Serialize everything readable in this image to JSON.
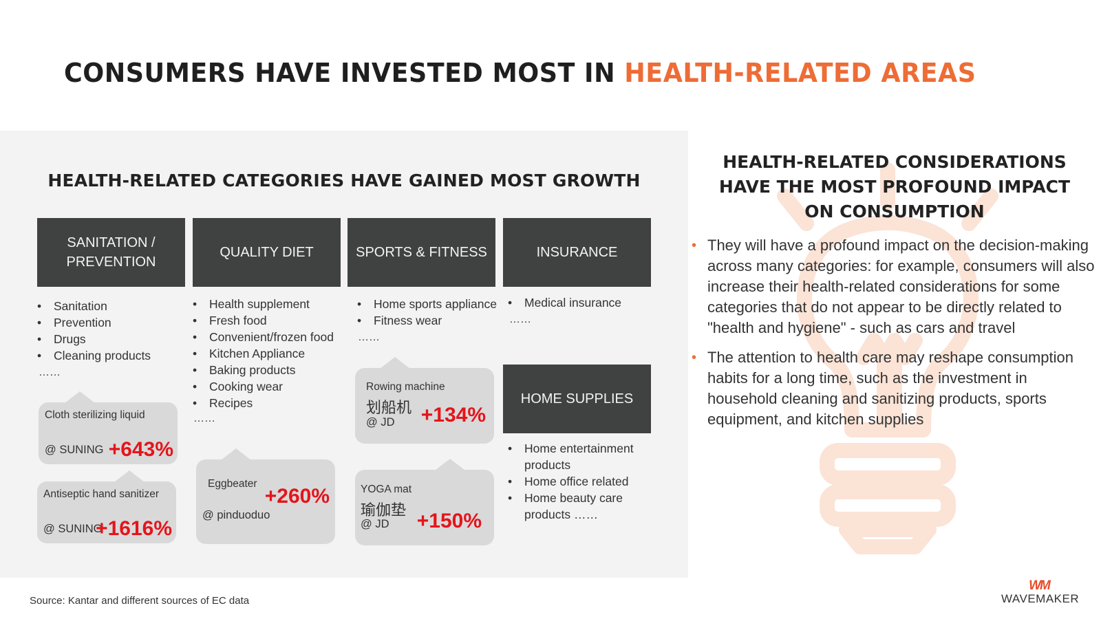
{
  "title": {
    "prefix": "CONSUMERS HAVE INVESTED MOST IN ",
    "highlight": "HEALTH-RELATED AREAS"
  },
  "colors": {
    "accent": "#ee6c35",
    "dark_box": "#3f4240",
    "panel_bg": "#f3f3f3",
    "callout_bg": "#d9d9d9",
    "growth_red": "#e5141b"
  },
  "left_panel": {
    "heading": "HEALTH-RELATED CATEGORIES HAVE GAINED MOST GROWTH",
    "categories": [
      {
        "name": "SANITATION /\nPREVENTION",
        "items": [
          "Sanitation",
          "Prevention",
          "Drugs",
          "Cleaning products"
        ],
        "more": "……"
      },
      {
        "name": "QUALITY DIET",
        "items": [
          "Health supplement",
          "Fresh food",
          "Convenient/frozen food",
          "Kitchen Appliance",
          "Baking products",
          "Cooking wear",
          "Recipes"
        ],
        "more": "……"
      },
      {
        "name": "SPORTS & FITNESS",
        "items": [
          "Home sports appliance",
          "Fitness wear"
        ],
        "more": "……"
      },
      {
        "name": "INSURANCE",
        "items": [
          "Medical insurance"
        ],
        "more": "……"
      },
      {
        "name": "HOME SUPPLIES",
        "items": [
          "Home entertainment products",
          "Home office related",
          "Home beauty care products ……"
        ]
      }
    ],
    "callouts": [
      {
        "label": "Cloth sterilizing liquid",
        "source": "@ SUNING",
        "growth": "+643%"
      },
      {
        "label": "Antiseptic hand sanitizer",
        "source": "@ SUNING",
        "growth": "+1616%"
      },
      {
        "label": "Eggbeater",
        "source": "@ pinduoduo",
        "growth": "+260%"
      },
      {
        "label": "Rowing machine",
        "label_cn": "划船机",
        "source": "@ JD",
        "growth": "+134%"
      },
      {
        "label": "YOGA mat",
        "label_cn": "瑜伽垫",
        "source": "@ JD",
        "growth": "+150%"
      }
    ]
  },
  "right_panel": {
    "heading": "HEALTH-RELATED CONSIDERATIONS HAVE THE MOST PROFOUND IMPACT ON CONSUMPTION",
    "points": [
      "They will have a profound impact on the decision-making across many categories: for example, consumers will also increase their health-related considerations for some categories that do not appear to be directly related to \"health and hygiene\" - such as cars and travel",
      "The attention to health care may reshape consumption habits for a long time, such as the investment in household cleaning and sanitizing products, sports equipment, and kitchen supplies"
    ]
  },
  "footer": {
    "source": "Source: Kantar and different sources of EC data",
    "logo_mark": "WM",
    "logo_text": "WAVEMAKER"
  }
}
